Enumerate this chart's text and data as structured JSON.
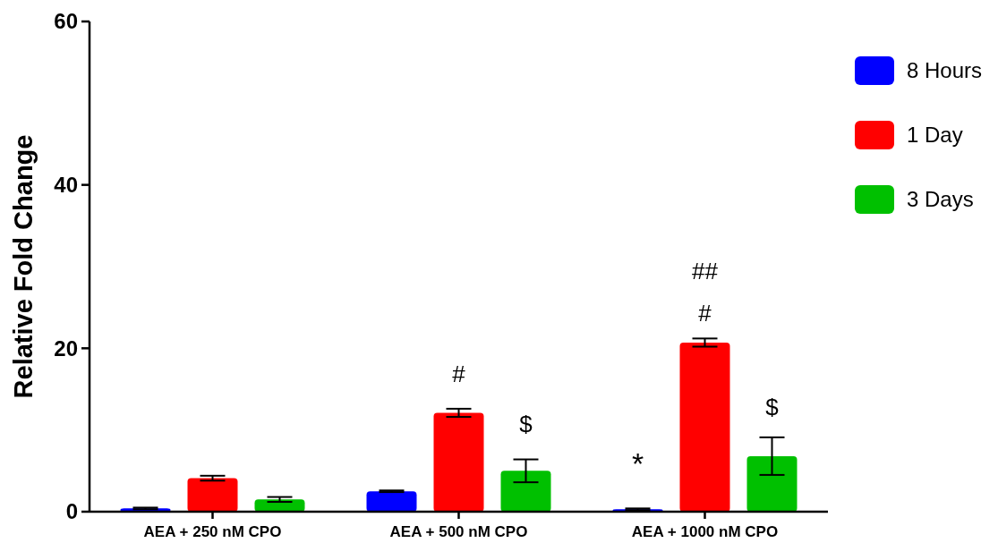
{
  "chart_data": {
    "type": "bar",
    "ylabel": "Relative Fold Change",
    "categories": [
      "AEA + 250 nM CPO",
      "AEA + 500 nM CPO",
      "AEA + 1000 nM CPO"
    ],
    "series": [
      {
        "name": "8 Hours",
        "color": "#0000ff",
        "values": [
          0.4,
          2.5,
          0.3
        ],
        "errors": [
          0.1,
          0.1,
          0.1
        ]
      },
      {
        "name": "1 Day",
        "color": "#ff0000",
        "values": [
          4.1,
          12.1,
          20.7
        ],
        "errors": [
          0.3,
          0.5,
          0.5
        ]
      },
      {
        "name": "3 Days",
        "color": "#00c000",
        "values": [
          1.5,
          5.0,
          6.8
        ],
        "errors": [
          0.3,
          1.4,
          2.3
        ]
      }
    ],
    "ylim": [
      0,
      60
    ],
    "yticks": [
      0,
      20,
      40,
      60
    ],
    "legend": "right",
    "grid": false,
    "annotations": [
      "#",
      "$",
      "*",
      "#",
      "##",
      "$"
    ]
  }
}
